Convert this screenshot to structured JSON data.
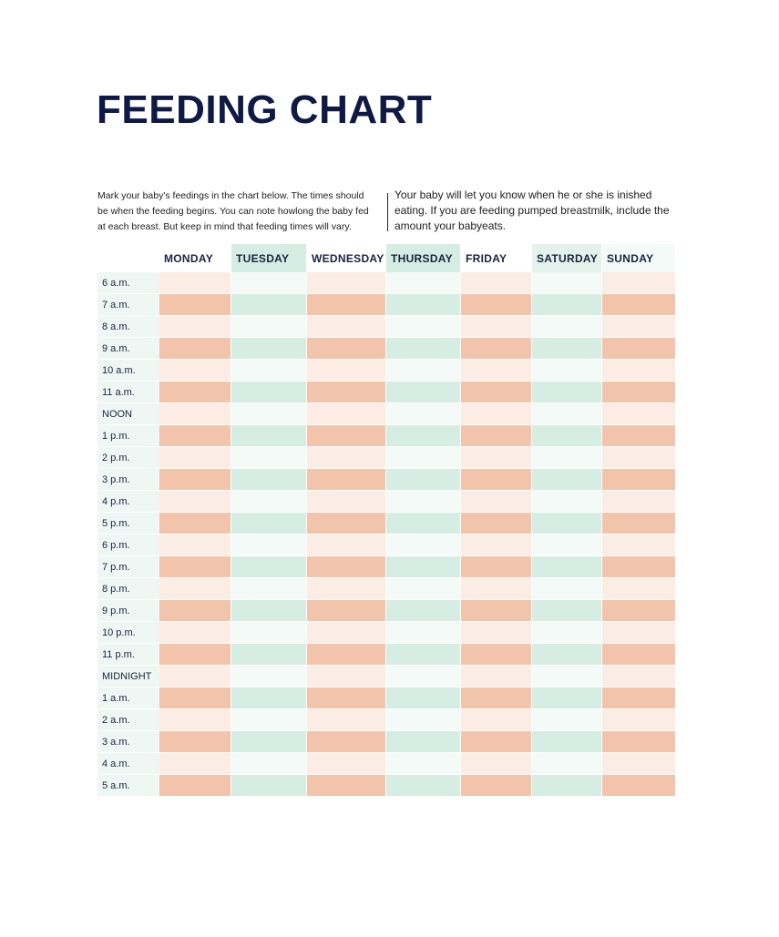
{
  "title": "FEEDING CHART",
  "intro_left": [
    "Mark your baby's feedings in the chart below. The times should",
    "be when the feeding begins. You can note howlong the baby fed",
    "at each breast. But keep in mind that feeding times will vary."
  ],
  "intro_right": [
    "Your baby will let you know when he or she is inished",
    "eating. If you are feeding pumped breastmilk, include the",
    "amount your babyeats."
  ],
  "table": {
    "columns": [
      "MONDAY",
      "TUESDAY",
      "WEDNESDAY",
      "THURSDAY",
      "FRIDAY",
      "SATURDAY",
      "SUNDAY"
    ],
    "rows": [
      "6 a.m.",
      "7 a.m.",
      "8 a.m.",
      "9 a.m.",
      "10 a.m.",
      "11 a.m.",
      "NOON",
      "1 p.m.",
      "2 p.m.",
      "3 p.m.",
      "4 p.m.",
      "5 p.m.",
      "6 p.m.",
      "7 p.m.",
      "8 p.m.",
      "9 p.m.",
      "10 p.m.",
      "11 p.m.",
      "MIDNIGHT",
      "1 a.m.",
      "2 a.m.",
      "3 a.m.",
      "4 a.m.",
      "5 a.m."
    ]
  }
}
